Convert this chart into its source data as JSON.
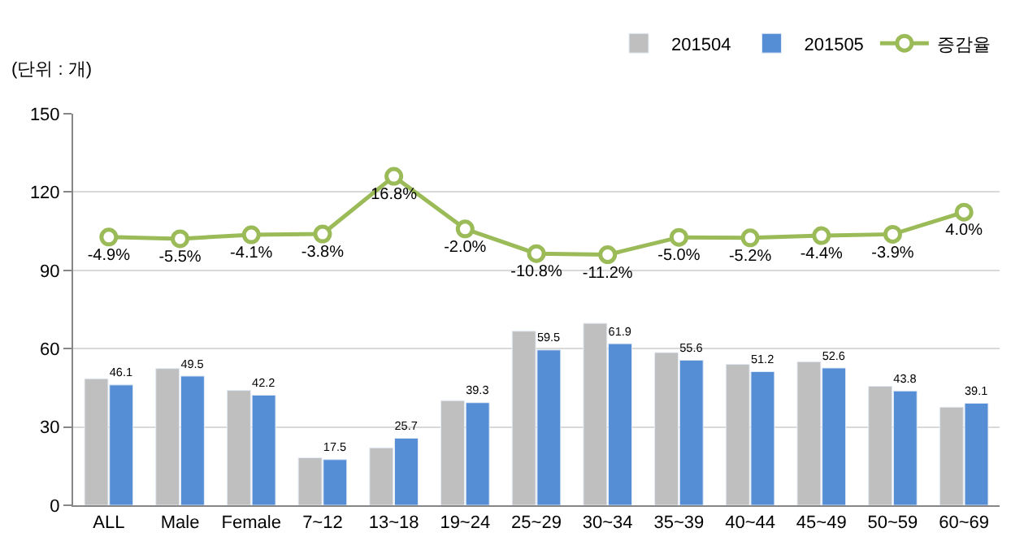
{
  "chart_data": {
    "type": "bar",
    "categories": [
      "ALL",
      "Male",
      "Female",
      "7~12",
      "13~18",
      "19~24",
      "25~29",
      "30~34",
      "35~39",
      "40~44",
      "45~49",
      "50~59",
      "60~69"
    ],
    "series": [
      {
        "name": "201504",
        "color": "#bfbfbf",
        "values": [
          48.5,
          52.4,
          44.0,
          18.2,
          22.0,
          40.1,
          66.7,
          69.7,
          58.5,
          54.0,
          55.0,
          45.6,
          37.6
        ]
      },
      {
        "name": "201505",
        "color": "#558ed5",
        "values": [
          46.1,
          49.5,
          42.2,
          17.5,
          25.7,
          39.3,
          59.5,
          61.9,
          55.6,
          51.2,
          52.6,
          43.8,
          39.1
        ],
        "value_labels": [
          "46.1",
          "49.5",
          "42.2",
          "17.5",
          "25.7",
          "39.3",
          "59.5",
          "61.9",
          "55.6",
          "51.2",
          "52.6",
          "43.8",
          "39.1"
        ]
      },
      {
        "name": "증감율",
        "type": "line",
        "axis": "y2",
        "color": "#9bbb59",
        "marker": "circle",
        "values": [
          -4.9,
          -5.5,
          -4.1,
          -3.8,
          16.8,
          -2.0,
          -10.8,
          -11.2,
          -5.0,
          -5.2,
          -4.4,
          -3.9,
          4.0
        ],
        "value_labels": [
          "-4.9%",
          "-5.5%",
          "-4.1%",
          "-3.8%",
          "16.8%",
          "-2.0%",
          "-10.8%",
          "-11.2%",
          "-5.0%",
          "-5.2%",
          "-4.4%",
          "-3.9%",
          "4.0%"
        ]
      }
    ],
    "ylim": [
      0,
      150
    ],
    "yticks": [
      0,
      30,
      60,
      90,
      120,
      150
    ],
    "grid": "y",
    "legend": "top right",
    "annotations": [
      "(단위 : 개)"
    ]
  }
}
